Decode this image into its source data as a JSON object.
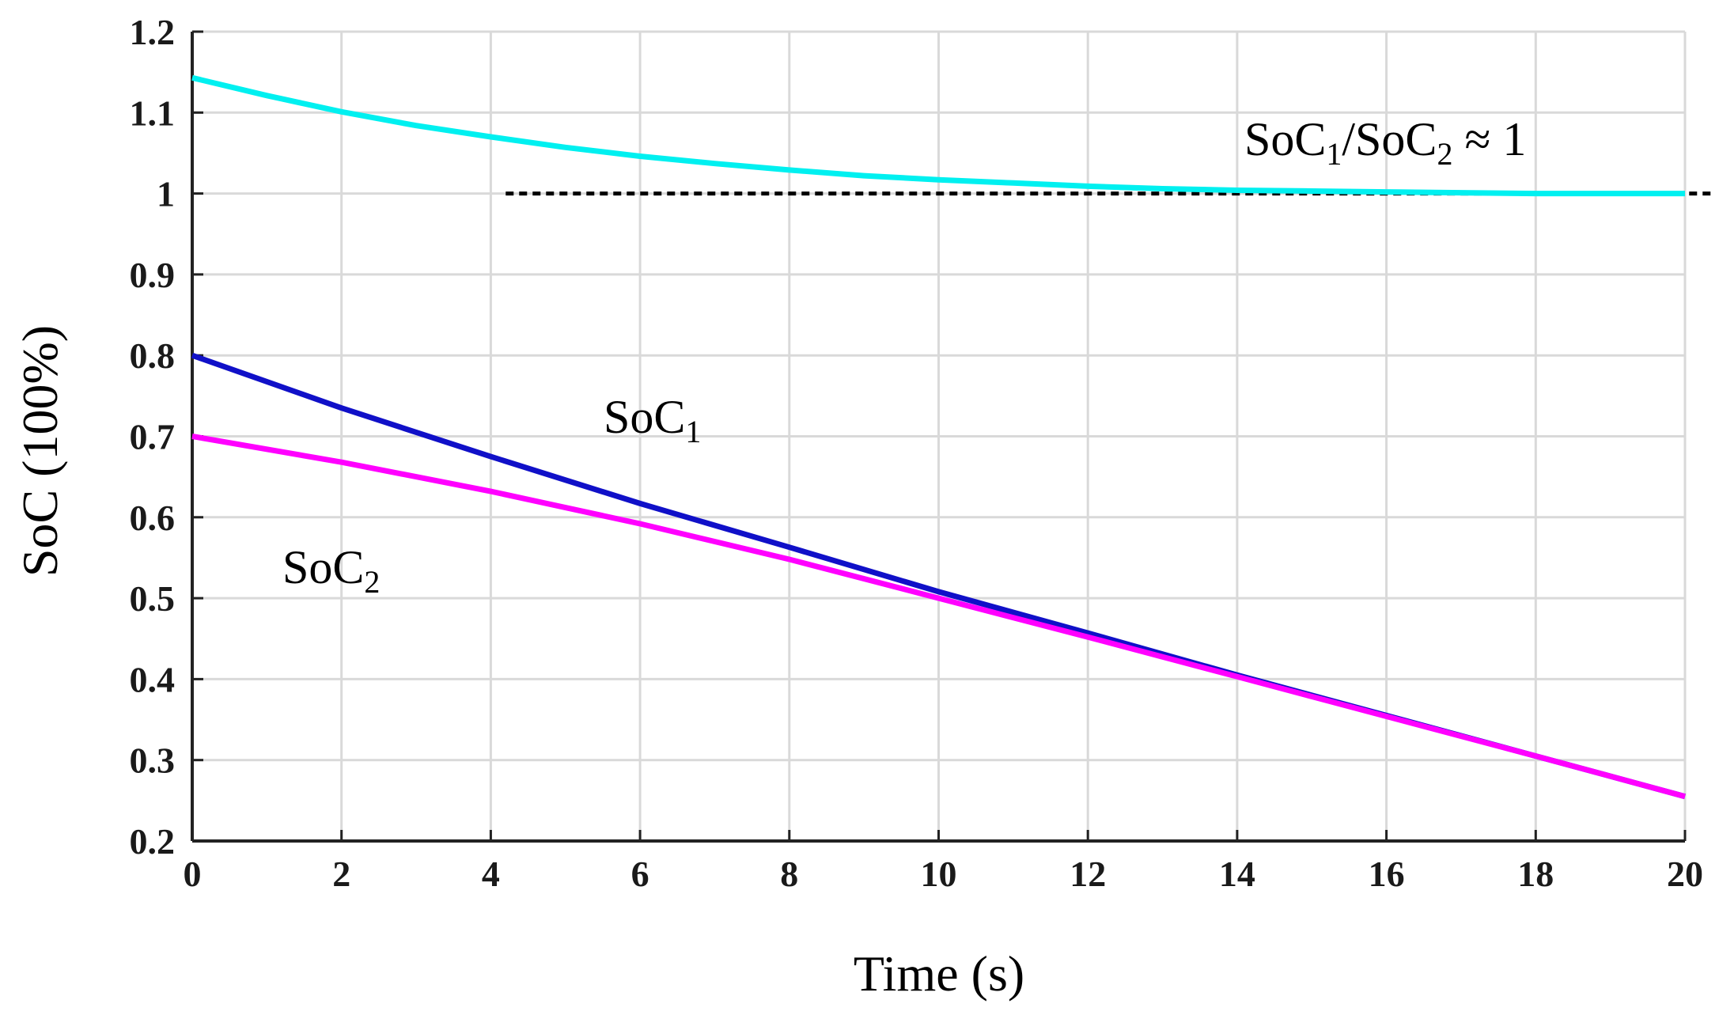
{
  "chart_data": {
    "type": "line",
    "title": "",
    "xlabel": "Time (s)",
    "ylabel": "SoC (100%)",
    "xlim": [
      0,
      20
    ],
    "ylim": [
      0.2,
      1.2
    ],
    "xticks": [
      0,
      2,
      4,
      6,
      8,
      10,
      12,
      14,
      16,
      18,
      20
    ],
    "xtick_labels": [
      "0",
      "2",
      "4",
      "6",
      "8",
      "10",
      "12",
      "14",
      "16",
      "18",
      "20"
    ],
    "yticks": [
      0.2,
      0.3,
      0.4,
      0.5,
      0.6,
      0.7,
      0.8,
      0.9,
      1.0,
      1.1,
      1.2
    ],
    "ytick_labels": [
      "0.2",
      "0.3",
      "0.4",
      "0.5",
      "0.6",
      "0.7",
      "0.8",
      "0.9",
      "1",
      "1.1",
      "1.2"
    ],
    "grid": true,
    "series": [
      {
        "name": "SoC1/SoC2",
        "color": "#00f0f0",
        "x": [
          0,
          1,
          2,
          3,
          4,
          5,
          6,
          7,
          8,
          9,
          10,
          11,
          12,
          13,
          14,
          15,
          16,
          17,
          18,
          19,
          20
        ],
        "y": [
          1.143,
          1.121,
          1.101,
          1.084,
          1.07,
          1.057,
          1.046,
          1.037,
          1.029,
          1.022,
          1.017,
          1.013,
          1.009,
          1.006,
          1.004,
          1.003,
          1.002,
          1.001,
          1.0,
          1.0,
          1.0
        ]
      },
      {
        "name": "SoC1",
        "color": "#1010c8",
        "x": [
          0,
          2,
          4,
          6,
          8,
          10,
          12,
          14,
          16,
          18,
          20
        ],
        "y": [
          0.8,
          0.735,
          0.675,
          0.617,
          0.563,
          0.508,
          0.457,
          0.405,
          0.355,
          0.305,
          0.255
        ]
      },
      {
        "name": "SoC2",
        "color": "#ff00ff",
        "x": [
          0,
          2,
          4,
          6,
          8,
          10,
          12,
          14,
          16,
          18,
          20
        ],
        "y": [
          0.7,
          0.668,
          0.632,
          0.592,
          0.548,
          0.5,
          0.452,
          0.403,
          0.354,
          0.305,
          0.255
        ]
      }
    ],
    "reference_line": {
      "y": 1.0,
      "x_start": 4.2,
      "x_end": 20.4,
      "style": "dotted",
      "color": "#000000"
    },
    "annotations": {
      "ratio": {
        "base1": "SoC",
        "sub1": "1",
        "mid": "/SoC",
        "sub2": "2",
        "tail": " ≈ 1"
      },
      "soc1": {
        "base": "SoC",
        "sub": "1"
      },
      "soc2": {
        "base": "SoC",
        "sub": "2"
      }
    }
  }
}
